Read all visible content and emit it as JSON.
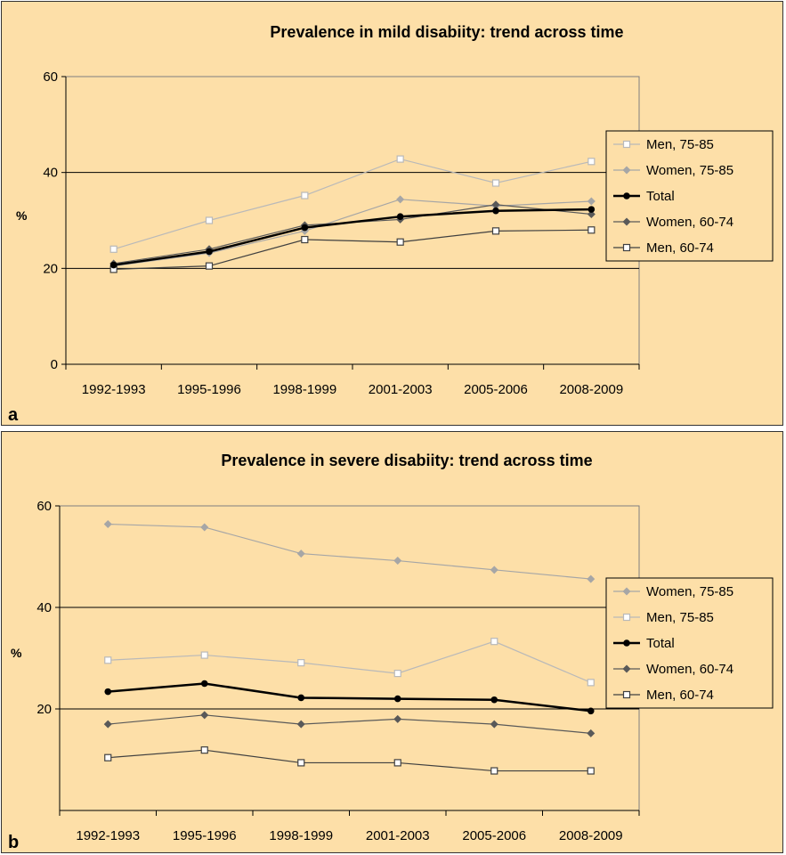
{
  "chart_data": [
    {
      "type": "line",
      "panel_letter": "a",
      "title": "Prevalence in mild disabiity: trend across time",
      "ylabel": "%",
      "xlabel": "",
      "ylim": [
        0,
        60
      ],
      "yticks": [
        0,
        20,
        40,
        60
      ],
      "gridlines_y": [
        20,
        40
      ],
      "legend_position": "right",
      "categories": [
        "1992-1993",
        "1995-1996",
        "1998-1999",
        "2001-2003",
        "2005-2006",
        "2008-2009"
      ],
      "series": [
        {
          "name": "Men, 75-85",
          "values": [
            24,
            30,
            35.2,
            42.8,
            37.8,
            42.3
          ],
          "color": "#b9b9b9",
          "marker": "open-square",
          "width": 1.2
        },
        {
          "name": "Women, 75-85",
          "values": [
            20.5,
            23.2,
            27.8,
            34.4,
            33,
            34
          ],
          "color": "#a6a6a6",
          "marker": "diamond",
          "width": 1.2
        },
        {
          "name": "Total",
          "values": [
            20.7,
            23.5,
            28.5,
            30.8,
            32,
            32.3
          ],
          "color": "#000000",
          "marker": "circle",
          "width": 2.5
        },
        {
          "name": "Women, 60-74",
          "values": [
            21,
            24,
            29,
            30.2,
            33.3,
            31.3
          ],
          "color": "#595959",
          "marker": "diamond",
          "width": 1.2
        },
        {
          "name": "Men, 60-74",
          "values": [
            19.8,
            20.5,
            26,
            25.5,
            27.8,
            28
          ],
          "color": "#404040",
          "marker": "open-square",
          "width": 1.2
        }
      ]
    },
    {
      "type": "line",
      "panel_letter": "b",
      "title": "Prevalence in severe disabiity: trend across time",
      "ylabel": "%",
      "xlabel": "",
      "ylim": [
        0,
        60
      ],
      "yticks": [
        20,
        40,
        60
      ],
      "gridlines_y": [
        20,
        40
      ],
      "legend_position": "right",
      "categories": [
        "1992-1993",
        "1995-1996",
        "1998-1999",
        "2001-2003",
        "2005-2006",
        "2008-2009"
      ],
      "series": [
        {
          "name": "Women, 75-85",
          "values": [
            56.4,
            55.8,
            50.6,
            49.2,
            47.4,
            45.6
          ],
          "color": "#a6a6a6",
          "marker": "diamond",
          "width": 1.2
        },
        {
          "name": "Men, 75-85",
          "values": [
            29.6,
            30.6,
            29.1,
            27,
            33.3,
            25.2
          ],
          "color": "#b9b9b9",
          "marker": "open-square",
          "width": 1.2
        },
        {
          "name": "Total",
          "values": [
            23.4,
            25,
            22.2,
            22,
            21.8,
            19.6
          ],
          "color": "#000000",
          "marker": "circle",
          "width": 2.5
        },
        {
          "name": "Women, 60-74",
          "values": [
            17,
            18.8,
            17,
            18,
            17,
            15.2
          ],
          "color": "#595959",
          "marker": "diamond",
          "width": 1.2
        },
        {
          "name": "Men, 60-74",
          "values": [
            10.4,
            11.9,
            9.4,
            9.4,
            7.8,
            7.8
          ],
          "color": "#404040",
          "marker": "open-square",
          "width": 1.2
        }
      ]
    }
  ]
}
